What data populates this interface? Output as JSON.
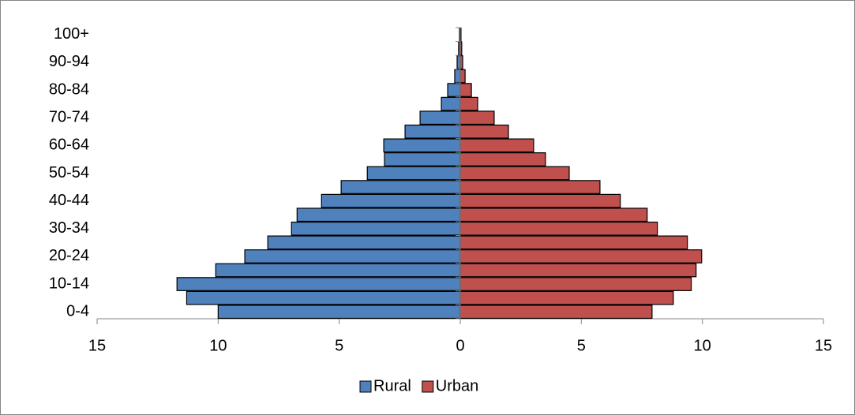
{
  "chart_data": {
    "type": "pyramid",
    "categories": [
      "0-4",
      null,
      "10-14",
      null,
      "20-24",
      null,
      "30-34",
      null,
      "40-44",
      null,
      "50-54",
      null,
      "60-64",
      null,
      "70-74",
      null,
      "80-84",
      null,
      "90-94",
      null,
      "100+"
    ],
    "series": [
      {
        "name": "Rural",
        "color": "#4f81bd",
        "values": [
          -10.0,
          -11.3,
          -11.7,
          -10.1,
          -8.9,
          -7.95,
          -6.97,
          -6.74,
          -5.73,
          -4.92,
          -3.84,
          -3.13,
          -3.16,
          -2.28,
          -1.66,
          -0.78,
          -0.52,
          -0.23,
          -0.13,
          -0.07,
          -0.03
        ]
      },
      {
        "name": "Urban",
        "color": "#c0504d",
        "values": [
          7.92,
          8.8,
          9.54,
          9.74,
          9.97,
          9.38,
          8.14,
          7.72,
          6.61,
          5.77,
          4.5,
          3.52,
          3.03,
          1.99,
          1.4,
          0.72,
          0.46,
          0.2,
          0.1,
          0.06,
          0.03
        ]
      }
    ],
    "xlim": [
      -15,
      15
    ],
    "xticks": [
      {
        "value": -15,
        "label": "15"
      },
      {
        "value": -10,
        "label": "10"
      },
      {
        "value": -5,
        "label": "5"
      },
      0,
      5,
      10,
      15
    ],
    "legend": "bottom"
  }
}
